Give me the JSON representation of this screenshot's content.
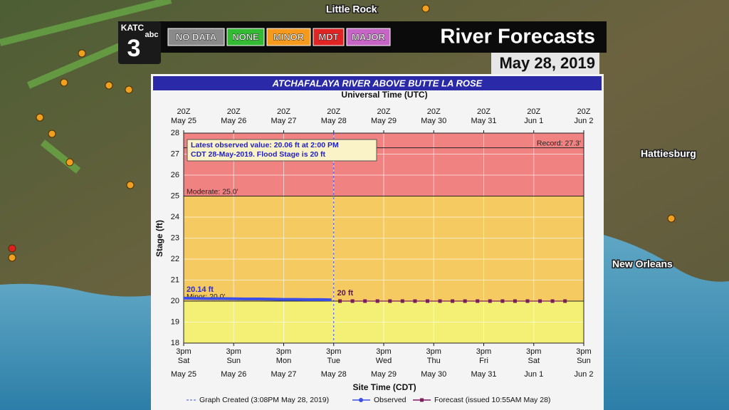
{
  "header": {
    "station": "KATC",
    "channel": "3",
    "network": "abc",
    "title": "River Forecasts",
    "date": "May 28, 2019",
    "legend": [
      {
        "label": "NO DATA",
        "color": "#8a8a8a"
      },
      {
        "label": "NONE",
        "color": "#33bb33"
      },
      {
        "label": "MINOR",
        "color": "#f59a1c"
      },
      {
        "label": "MDT",
        "color": "#e02424"
      },
      {
        "label": "MAJOR",
        "color": "#c765c7"
      }
    ]
  },
  "map_labels": [
    "Little Rock",
    "Hattiesburg",
    "New Orleans"
  ],
  "chart_data": {
    "type": "line",
    "title": "ATCHAFALAYA RIVER ABOVE BUTTE LA ROSE",
    "top_axis_label": "Universal Time (UTC)",
    "x_label": "Site Time (CDT)",
    "y_label": "Stage (ft)",
    "xlim": [
      "2019-05-25T15:00",
      "2019-06-02T15:00"
    ],
    "xticks": [
      {
        "value": "2019-05-25T15:00",
        "label": "3pm"
      },
      {
        "value": "2019-05-26T15:00",
        "label": "3pm"
      },
      {
        "value": "2019-05-27T15:00",
        "label": "3pm"
      },
      {
        "value": "2019-05-28T15:00",
        "label": "3pm"
      },
      {
        "value": "2019-05-29T15:00",
        "label": "3pm"
      },
      {
        "value": "2019-05-30T15:00",
        "label": "3pm"
      },
      {
        "value": "2019-05-31T15:00",
        "label": "3pm"
      },
      {
        "value": "2019-06-01T15:00",
        "label": "3pm"
      },
      {
        "value": "2019-06-02T15:00",
        "label": "3pm"
      }
    ],
    "xtick_weekdays": [
      "Sat",
      "Sun",
      "Mon",
      "Tue",
      "Wed",
      "Thu",
      "Fri",
      "Sat",
      "Sun"
    ],
    "xtick_dates": [
      "May 25",
      "May 26",
      "May 27",
      "May 28",
      "May 29",
      "May 30",
      "May 31",
      "Jun 1",
      "Jun 2"
    ],
    "x2ticks": [
      {
        "value": "2019-05-25T15:00",
        "label": "20Z"
      },
      {
        "value": "2019-05-26T15:00",
        "label": "20Z"
      },
      {
        "value": "2019-05-27T15:00",
        "label": "20Z"
      },
      {
        "value": "2019-05-28T15:00",
        "label": "20Z"
      },
      {
        "value": "2019-05-29T15:00",
        "label": "20Z"
      },
      {
        "value": "2019-05-30T15:00",
        "label": "20Z"
      },
      {
        "value": "2019-05-31T15:00",
        "label": "20Z"
      },
      {
        "value": "2019-06-01T15:00",
        "label": "20Z"
      },
      {
        "value": "2019-06-02T15:00",
        "label": "20Z"
      }
    ],
    "x2tick_dates": [
      "May 25",
      "May 26",
      "May 27",
      "May 28",
      "May 29",
      "May 30",
      "May 31",
      "Jun 1",
      "Jun 2"
    ],
    "ylim": [
      18,
      28
    ],
    "yticks": [
      18,
      19,
      20,
      21,
      22,
      23,
      24,
      25,
      26,
      27,
      28
    ],
    "grid": true,
    "bands": [
      {
        "from": 18,
        "to": 20,
        "color": "#f3ef6a"
      },
      {
        "from": 20,
        "to": 25,
        "color": "#f4c552"
      },
      {
        "from": 25,
        "to": 28,
        "color": "#ef7777"
      }
    ],
    "thresholds": [
      {
        "label": "Record: 27.3'",
        "value": 27.3
      },
      {
        "label": "Moderate: 25.0'",
        "value": 25
      },
      {
        "label": "Minor: 20.0'",
        "value": 20
      }
    ],
    "now": "2019-05-28T15:00",
    "note": [
      "Latest observed value: 20.06 ft at 2:00 PM",
      "CDT 28-May-2019. Flood Stage is 20 ft"
    ],
    "first_observed_label": "20.14 ft",
    "first_forecast_label": "20 ft",
    "footer": "Graph Created (3:08PM May 28, 2019)",
    "series": [
      {
        "name": "Observed",
        "color": "#3b4fe6",
        "x": [
          "2019-05-25T15:00",
          "2019-05-25T21:00",
          "2019-05-26T03:00",
          "2019-05-26T09:00",
          "2019-05-26T15:00",
          "2019-05-26T21:00",
          "2019-05-27T03:00",
          "2019-05-27T09:00",
          "2019-05-27T15:00",
          "2019-05-27T21:00",
          "2019-05-28T03:00",
          "2019-05-28T09:00",
          "2019-05-28T14:00"
        ],
        "values": [
          20.14,
          20.13,
          20.12,
          20.12,
          20.11,
          20.1,
          20.1,
          20.09,
          20.08,
          20.08,
          20.07,
          20.07,
          20.06
        ]
      },
      {
        "name": "Forecast (issued 10:55AM May 28)",
        "color": "#7a1f5c",
        "x": [
          "2019-05-28T18:00",
          "2019-05-29T00:00",
          "2019-05-29T06:00",
          "2019-05-29T12:00",
          "2019-05-29T18:00",
          "2019-05-30T00:00",
          "2019-05-30T06:00",
          "2019-05-30T12:00",
          "2019-05-30T18:00",
          "2019-05-31T00:00",
          "2019-05-31T06:00",
          "2019-05-31T12:00",
          "2019-05-31T18:00",
          "2019-06-01T00:00",
          "2019-06-01T06:00",
          "2019-06-01T12:00",
          "2019-06-01T18:00",
          "2019-06-02T00:00",
          "2019-06-02T06:00"
        ],
        "values": [
          20,
          20,
          20,
          20,
          20,
          20,
          20,
          20,
          20,
          20,
          20,
          20,
          20,
          20,
          20,
          20,
          20,
          20,
          20
        ]
      }
    ]
  }
}
